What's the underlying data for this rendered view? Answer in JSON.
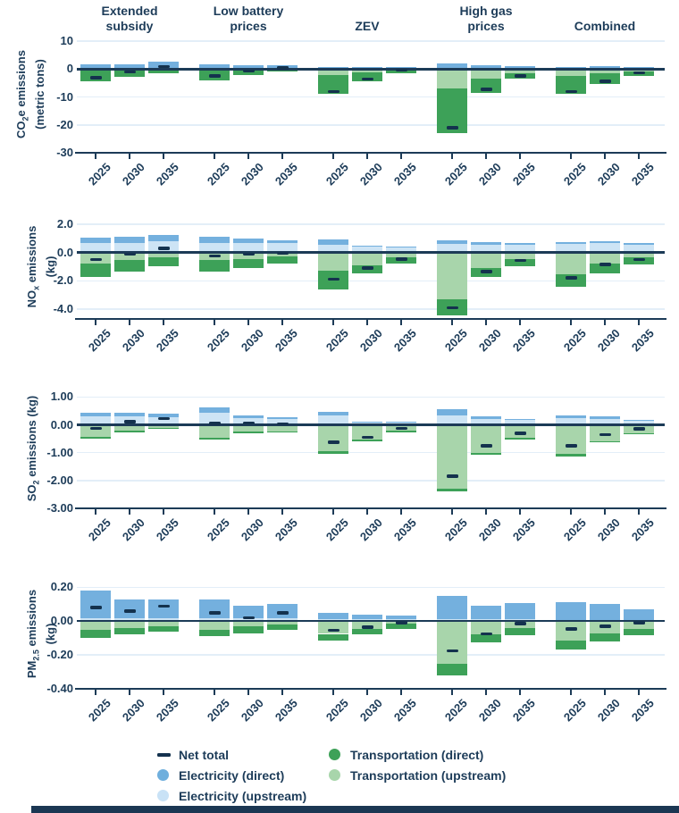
{
  "figure": {
    "scenario_headers": [
      [
        "Extended",
        "subsidy"
      ],
      [
        "Low battery",
        "prices"
      ],
      [
        "ZEV"
      ],
      [
        "High gas",
        "prices"
      ],
      [
        "Combined"
      ]
    ],
    "years": [
      "2025",
      "2030",
      "2035"
    ]
  },
  "colors": {
    "electricity_direct": "#74b0de",
    "electricity_upstream": "#cde4f5",
    "transportation_direct": "#3da158",
    "transportation_upstream": "#a8d5ab",
    "net_total": "#14324e",
    "axis": "#1c3b57",
    "gridline": "#e3eef8",
    "footer_strip": "#1b3753"
  },
  "legend": {
    "columns": [
      [
        0,
        1,
        2
      ],
      [
        3,
        4
      ]
    ],
    "items": [
      {
        "label": "Net total",
        "swatch": "dash",
        "color": "#14324e"
      },
      {
        "label": "Electricity (direct)",
        "swatch": "circle",
        "color": "#6fafdd"
      },
      {
        "label": "Electricity (upstream)",
        "swatch": "circle",
        "color": "#c9e2f6"
      },
      {
        "label": "Transportation (direct)",
        "swatch": "circle",
        "color": "#3da158"
      },
      {
        "label": "Transportation (upstream)",
        "swatch": "circle",
        "color": "#a8d5ab"
      }
    ]
  },
  "chart_data": [
    {
      "id": "co2e",
      "type": "bar",
      "stacked": true,
      "ylabel": {
        "pre": "CO",
        "sub": "2",
        "post": "e emissions",
        "line2": "(metric tons)"
      },
      "ylim": [
        -30,
        12
      ],
      "yticks": [
        {
          "v": 10,
          "label": "10"
        },
        {
          "v": 0,
          "label": "0"
        },
        {
          "v": -10,
          "label": "-10"
        },
        {
          "v": -20,
          "label": "-20"
        },
        {
          "v": -30,
          "label": "-30"
        }
      ],
      "series_keys": [
        "electricity_upstream",
        "electricity_direct",
        "transportation_upstream",
        "transportation_direct",
        "net_total"
      ],
      "groups": [
        [
          [
            0.4,
            1.4,
            -0.6,
            -3.8,
            -3.0
          ],
          [
            0.4,
            1.3,
            -0.4,
            -2.3,
            -1.0
          ],
          [
            0.6,
            2.2,
            -0.4,
            -1.0,
            0.9
          ]
        ],
        [
          [
            0.4,
            1.4,
            -0.5,
            -3.6,
            -2.5
          ],
          [
            0.3,
            1.2,
            -0.3,
            -1.9,
            -0.6
          ],
          [
            0.3,
            1.0,
            -0.2,
            -0.6,
            0.5
          ]
        ],
        [
          [
            0.2,
            0.5,
            -2.0,
            -7.0,
            -8.0
          ],
          [
            0.2,
            0.5,
            -1.2,
            -3.2,
            -3.6
          ],
          [
            0.3,
            0.6,
            -0.4,
            -1.0,
            -0.4
          ]
        ],
        [
          [
            0.6,
            1.6,
            -7.0,
            -15.8,
            -21.0
          ],
          [
            0.4,
            1.1,
            -3.5,
            -5.0,
            -7.3
          ],
          [
            0.3,
            0.9,
            -1.4,
            -2.1,
            -2.5
          ]
        ],
        [
          [
            0.3,
            0.6,
            -2.3,
            -6.7,
            -8.0
          ],
          [
            0.3,
            0.7,
            -1.5,
            -3.8,
            -4.3
          ],
          [
            0.3,
            0.6,
            -0.7,
            -1.6,
            -1.3
          ]
        ]
      ]
    },
    {
      "id": "nox",
      "type": "bar",
      "stacked": true,
      "ylabel": {
        "pre": "NO",
        "sub": "x",
        "post": " emissions (kg)",
        "line2": ""
      },
      "ylim": [
        -4.7,
        2.7
      ],
      "yticks": [
        {
          "v": 2,
          "label": "2.0"
        },
        {
          "v": 0,
          "label": "0.0"
        },
        {
          "v": -2,
          "label": "-2.0"
        },
        {
          "v": -4,
          "label": "-4.0"
        }
      ],
      "series_keys": [
        "electricity_upstream",
        "electricity_direct",
        "transportation_upstream",
        "transportation_direct",
        "net_total"
      ],
      "groups": [
        [
          [
            0.65,
            0.4,
            -0.75,
            -1.0,
            -0.5
          ],
          [
            0.7,
            0.45,
            -0.55,
            -0.8,
            -0.1
          ],
          [
            0.8,
            0.45,
            -0.35,
            -0.6,
            0.3
          ]
        ],
        [
          [
            0.7,
            0.4,
            -0.5,
            -0.85,
            -0.25
          ],
          [
            0.65,
            0.35,
            -0.45,
            -0.65,
            -0.1
          ],
          [
            0.7,
            0.15,
            -0.25,
            -0.55,
            -0.05
          ]
        ],
        [
          [
            0.55,
            0.35,
            -1.3,
            -1.3,
            -1.9
          ],
          [
            0.4,
            0.1,
            -0.9,
            -0.6,
            -1.1
          ],
          [
            0.4,
            0.05,
            -0.35,
            -0.45,
            -0.45
          ]
        ],
        [
          [
            0.6,
            0.25,
            -3.3,
            -1.15,
            -3.9
          ],
          [
            0.55,
            0.2,
            -1.1,
            -0.65,
            -1.35
          ],
          [
            0.55,
            0.15,
            -0.45,
            -0.5,
            -0.55
          ]
        ],
        [
          [
            0.6,
            0.15,
            -1.55,
            -0.9,
            -1.8
          ],
          [
            0.65,
            0.15,
            -0.75,
            -0.75,
            -0.85
          ],
          [
            0.55,
            0.1,
            -0.35,
            -0.5,
            -0.5
          ]
        ]
      ]
    },
    {
      "id": "so2",
      "type": "bar",
      "stacked": true,
      "ylabel": {
        "pre": "SO",
        "sub": "2",
        "post": " emissions (kg)",
        "line2": ""
      },
      "ylim": [
        -3.0,
        1.3
      ],
      "yticks": [
        {
          "v": 1,
          "label": "1.00"
        },
        {
          "v": 0,
          "label": "0.00"
        },
        {
          "v": -1,
          "label": "-1.00"
        },
        {
          "v": -2,
          "label": "-2.00"
        },
        {
          "v": -3,
          "label": "-3.00"
        }
      ],
      "series_keys": [
        "electricity_upstream",
        "electricity_direct",
        "transportation_upstream",
        "transportation_direct",
        "net_total"
      ],
      "groups": [
        [
          [
            0.3,
            0.12,
            -0.42,
            -0.08,
            -0.12
          ],
          [
            0.3,
            0.14,
            -0.22,
            -0.05,
            0.12
          ],
          [
            0.28,
            0.12,
            -0.12,
            -0.03,
            0.22
          ]
        ],
        [
          [
            0.42,
            0.2,
            -0.45,
            -0.07,
            0.05
          ],
          [
            0.25,
            0.1,
            -0.25,
            -0.05,
            0.07
          ],
          [
            0.2,
            0.08,
            -0.24,
            -0.04,
            0.04
          ]
        ],
        [
          [
            0.33,
            0.12,
            -0.95,
            -0.08,
            -0.62
          ],
          [
            0.1,
            0.02,
            -0.52,
            -0.06,
            -0.45
          ],
          [
            0.1,
            0.02,
            -0.22,
            -0.04,
            -0.12
          ]
        ],
        [
          [
            0.35,
            0.2,
            -2.3,
            -0.1,
            -1.85
          ],
          [
            0.22,
            0.08,
            -1.0,
            -0.07,
            -0.75
          ],
          [
            0.17,
            0.05,
            -0.48,
            -0.05,
            -0.3
          ]
        ],
        [
          [
            0.25,
            0.1,
            -1.05,
            -0.08,
            -0.75
          ],
          [
            0.22,
            0.08,
            -0.58,
            -0.06,
            -0.35
          ],
          [
            0.14,
            0.04,
            -0.3,
            -0.04,
            -0.15
          ]
        ]
      ]
    },
    {
      "id": "pm25",
      "type": "bar",
      "stacked": true,
      "ylabel": {
        "pre": "PM",
        "sub": "2.5",
        "post": " emissions (kg)",
        "line2": ""
      },
      "ylim": [
        -0.4,
        0.25
      ],
      "yticks": [
        {
          "v": 0.2,
          "label": "0.20"
        },
        {
          "v": 0,
          "label": "0.00"
        },
        {
          "v": -0.2,
          "label": "-0.20"
        },
        {
          "v": -0.4,
          "label": "-0.40"
        }
      ],
      "series_keys": [
        "electricity_upstream",
        "electricity_direct",
        "transportation_upstream",
        "transportation_direct",
        "net_total"
      ],
      "groups": [
        [
          [
            0.02,
            0.16,
            -0.05,
            -0.05,
            0.08
          ],
          [
            0.02,
            0.11,
            -0.04,
            -0.04,
            0.06
          ],
          [
            0.02,
            0.11,
            -0.03,
            -0.03,
            0.09
          ]
        ],
        [
          [
            0.02,
            0.11,
            -0.05,
            -0.04,
            0.05
          ],
          [
            0.02,
            0.07,
            -0.03,
            -0.04,
            0.02
          ],
          [
            0.02,
            0.08,
            -0.02,
            -0.03,
            0.05
          ]
        ],
        [
          [
            0.01,
            0.04,
            -0.075,
            -0.04,
            -0.055
          ],
          [
            0.01,
            0.03,
            -0.045,
            -0.035,
            -0.035
          ],
          [
            0.01,
            0.025,
            -0.015,
            -0.03,
            -0.01
          ]
        ],
        [
          [
            0.01,
            0.14,
            -0.25,
            -0.07,
            -0.175
          ],
          [
            0.01,
            0.08,
            -0.08,
            -0.045,
            -0.075
          ],
          [
            0.01,
            0.095,
            -0.04,
            -0.045,
            -0.015
          ]
        ],
        [
          [
            0.005,
            0.11,
            -0.115,
            -0.055,
            -0.045
          ],
          [
            0.005,
            0.095,
            -0.07,
            -0.05,
            -0.03
          ],
          [
            0.005,
            0.065,
            -0.045,
            -0.04,
            -0.01
          ]
        ]
      ]
    }
  ]
}
